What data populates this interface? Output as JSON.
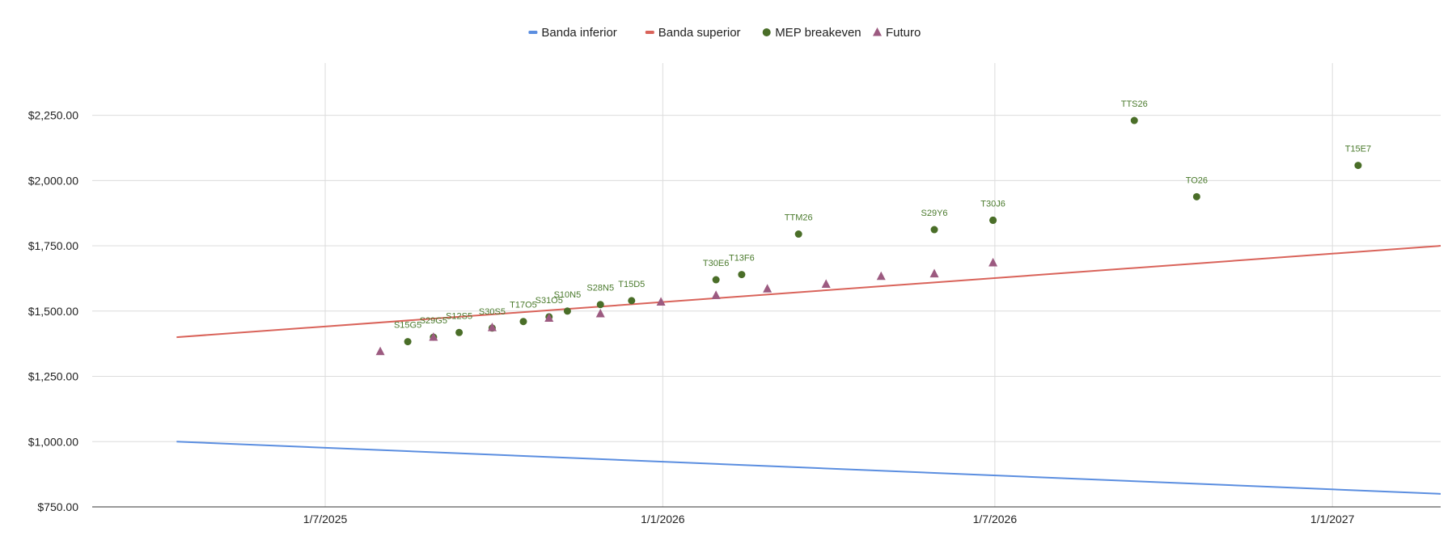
{
  "chart_data": {
    "type": "scatter",
    "title": "",
    "xlabel": "",
    "ylabel": "",
    "legend_position": "top",
    "grid": true,
    "xlim": [
      "2025-02-24",
      "2027-03-01"
    ],
    "ylim": [
      750,
      2450
    ],
    "x_ticks": [
      {
        "date": "2025-07-01",
        "label": "1/7/2025"
      },
      {
        "date": "2026-01-01",
        "label": "1/1/2026"
      },
      {
        "date": "2026-07-01",
        "label": "1/7/2026"
      },
      {
        "date": "2027-01-01",
        "label": "1/1/2027"
      }
    ],
    "y_ticks": [
      {
        "value": 750,
        "label": "$750.00"
      },
      {
        "value": 1000,
        "label": "$1,000.00"
      },
      {
        "value": 1250,
        "label": "$1,250.00"
      },
      {
        "value": 1500,
        "label": "$1,500.00"
      },
      {
        "value": 1750,
        "label": "$1,750.00"
      },
      {
        "value": 2000,
        "label": "$2,000.00"
      },
      {
        "value": 2250,
        "label": "$2,250.00"
      }
    ],
    "series": [
      {
        "name": "Banda inferior",
        "kind": "line",
        "color": "#5b8ee0",
        "points": [
          {
            "x": "2025-04-11",
            "y": 1000
          },
          {
            "x": "2027-03-01",
            "y": 800
          }
        ]
      },
      {
        "name": "Banda superior",
        "kind": "line",
        "color": "#d9635a",
        "points": [
          {
            "x": "2025-04-11",
            "y": 1400
          },
          {
            "x": "2027-03-01",
            "y": 1750
          }
        ]
      },
      {
        "name": "MEP breakeven",
        "kind": "circle",
        "color": "#4a6e28",
        "points": [
          {
            "x": "2025-08-15",
            "y": 1383,
            "label": "S15G5"
          },
          {
            "x": "2025-08-29",
            "y": 1400,
            "label": "S29G5"
          },
          {
            "x": "2025-09-12",
            "y": 1418,
            "label": "S12S5"
          },
          {
            "x": "2025-09-30",
            "y": 1435,
            "label": "S30S5"
          },
          {
            "x": "2025-10-17",
            "y": 1460,
            "label": "T17O5"
          },
          {
            "x": "2025-10-31",
            "y": 1478,
            "label": "S31O5"
          },
          {
            "x": "2025-11-10",
            "y": 1500,
            "label": "S10N5"
          },
          {
            "x": "2025-11-28",
            "y": 1525,
            "label": "S28N5"
          },
          {
            "x": "2025-12-15",
            "y": 1540,
            "label": "T15D5"
          },
          {
            "x": "2026-01-30",
            "y": 1620,
            "label": "T30E6"
          },
          {
            "x": "2026-02-13",
            "y": 1640,
            "label": "T13F6"
          },
          {
            "x": "2026-03-16",
            "y": 1795,
            "label": "TTM26"
          },
          {
            "x": "2026-05-29",
            "y": 1812,
            "label": "S29Y6"
          },
          {
            "x": "2026-06-30",
            "y": 1848,
            "label": "T30J6"
          },
          {
            "x": "2026-06-30",
            "y": 1848,
            "label": ""
          },
          {
            "x": "2026-09-15",
            "y": 2230,
            "label": "TTS26"
          },
          {
            "x": "2026-10-19",
            "y": 1938,
            "label": "TO26"
          },
          {
            "x": "2027-01-15",
            "y": 2058,
            "label": "T15E7"
          }
        ]
      },
      {
        "name": "Futuro",
        "kind": "triangle",
        "color": "#9c5a80",
        "points": [
          {
            "x": "2025-07-31",
            "y": 1345
          },
          {
            "x": "2025-08-29",
            "y": 1400
          },
          {
            "x": "2025-09-30",
            "y": 1437
          },
          {
            "x": "2025-10-31",
            "y": 1473
          },
          {
            "x": "2025-11-28",
            "y": 1490
          },
          {
            "x": "2025-12-31",
            "y": 1535
          },
          {
            "x": "2026-01-30",
            "y": 1560
          },
          {
            "x": "2026-02-27",
            "y": 1585
          },
          {
            "x": "2026-03-31",
            "y": 1603
          },
          {
            "x": "2026-04-30",
            "y": 1633
          },
          {
            "x": "2026-05-29",
            "y": 1643
          },
          {
            "x": "2026-06-30",
            "y": 1685
          }
        ]
      }
    ]
  }
}
